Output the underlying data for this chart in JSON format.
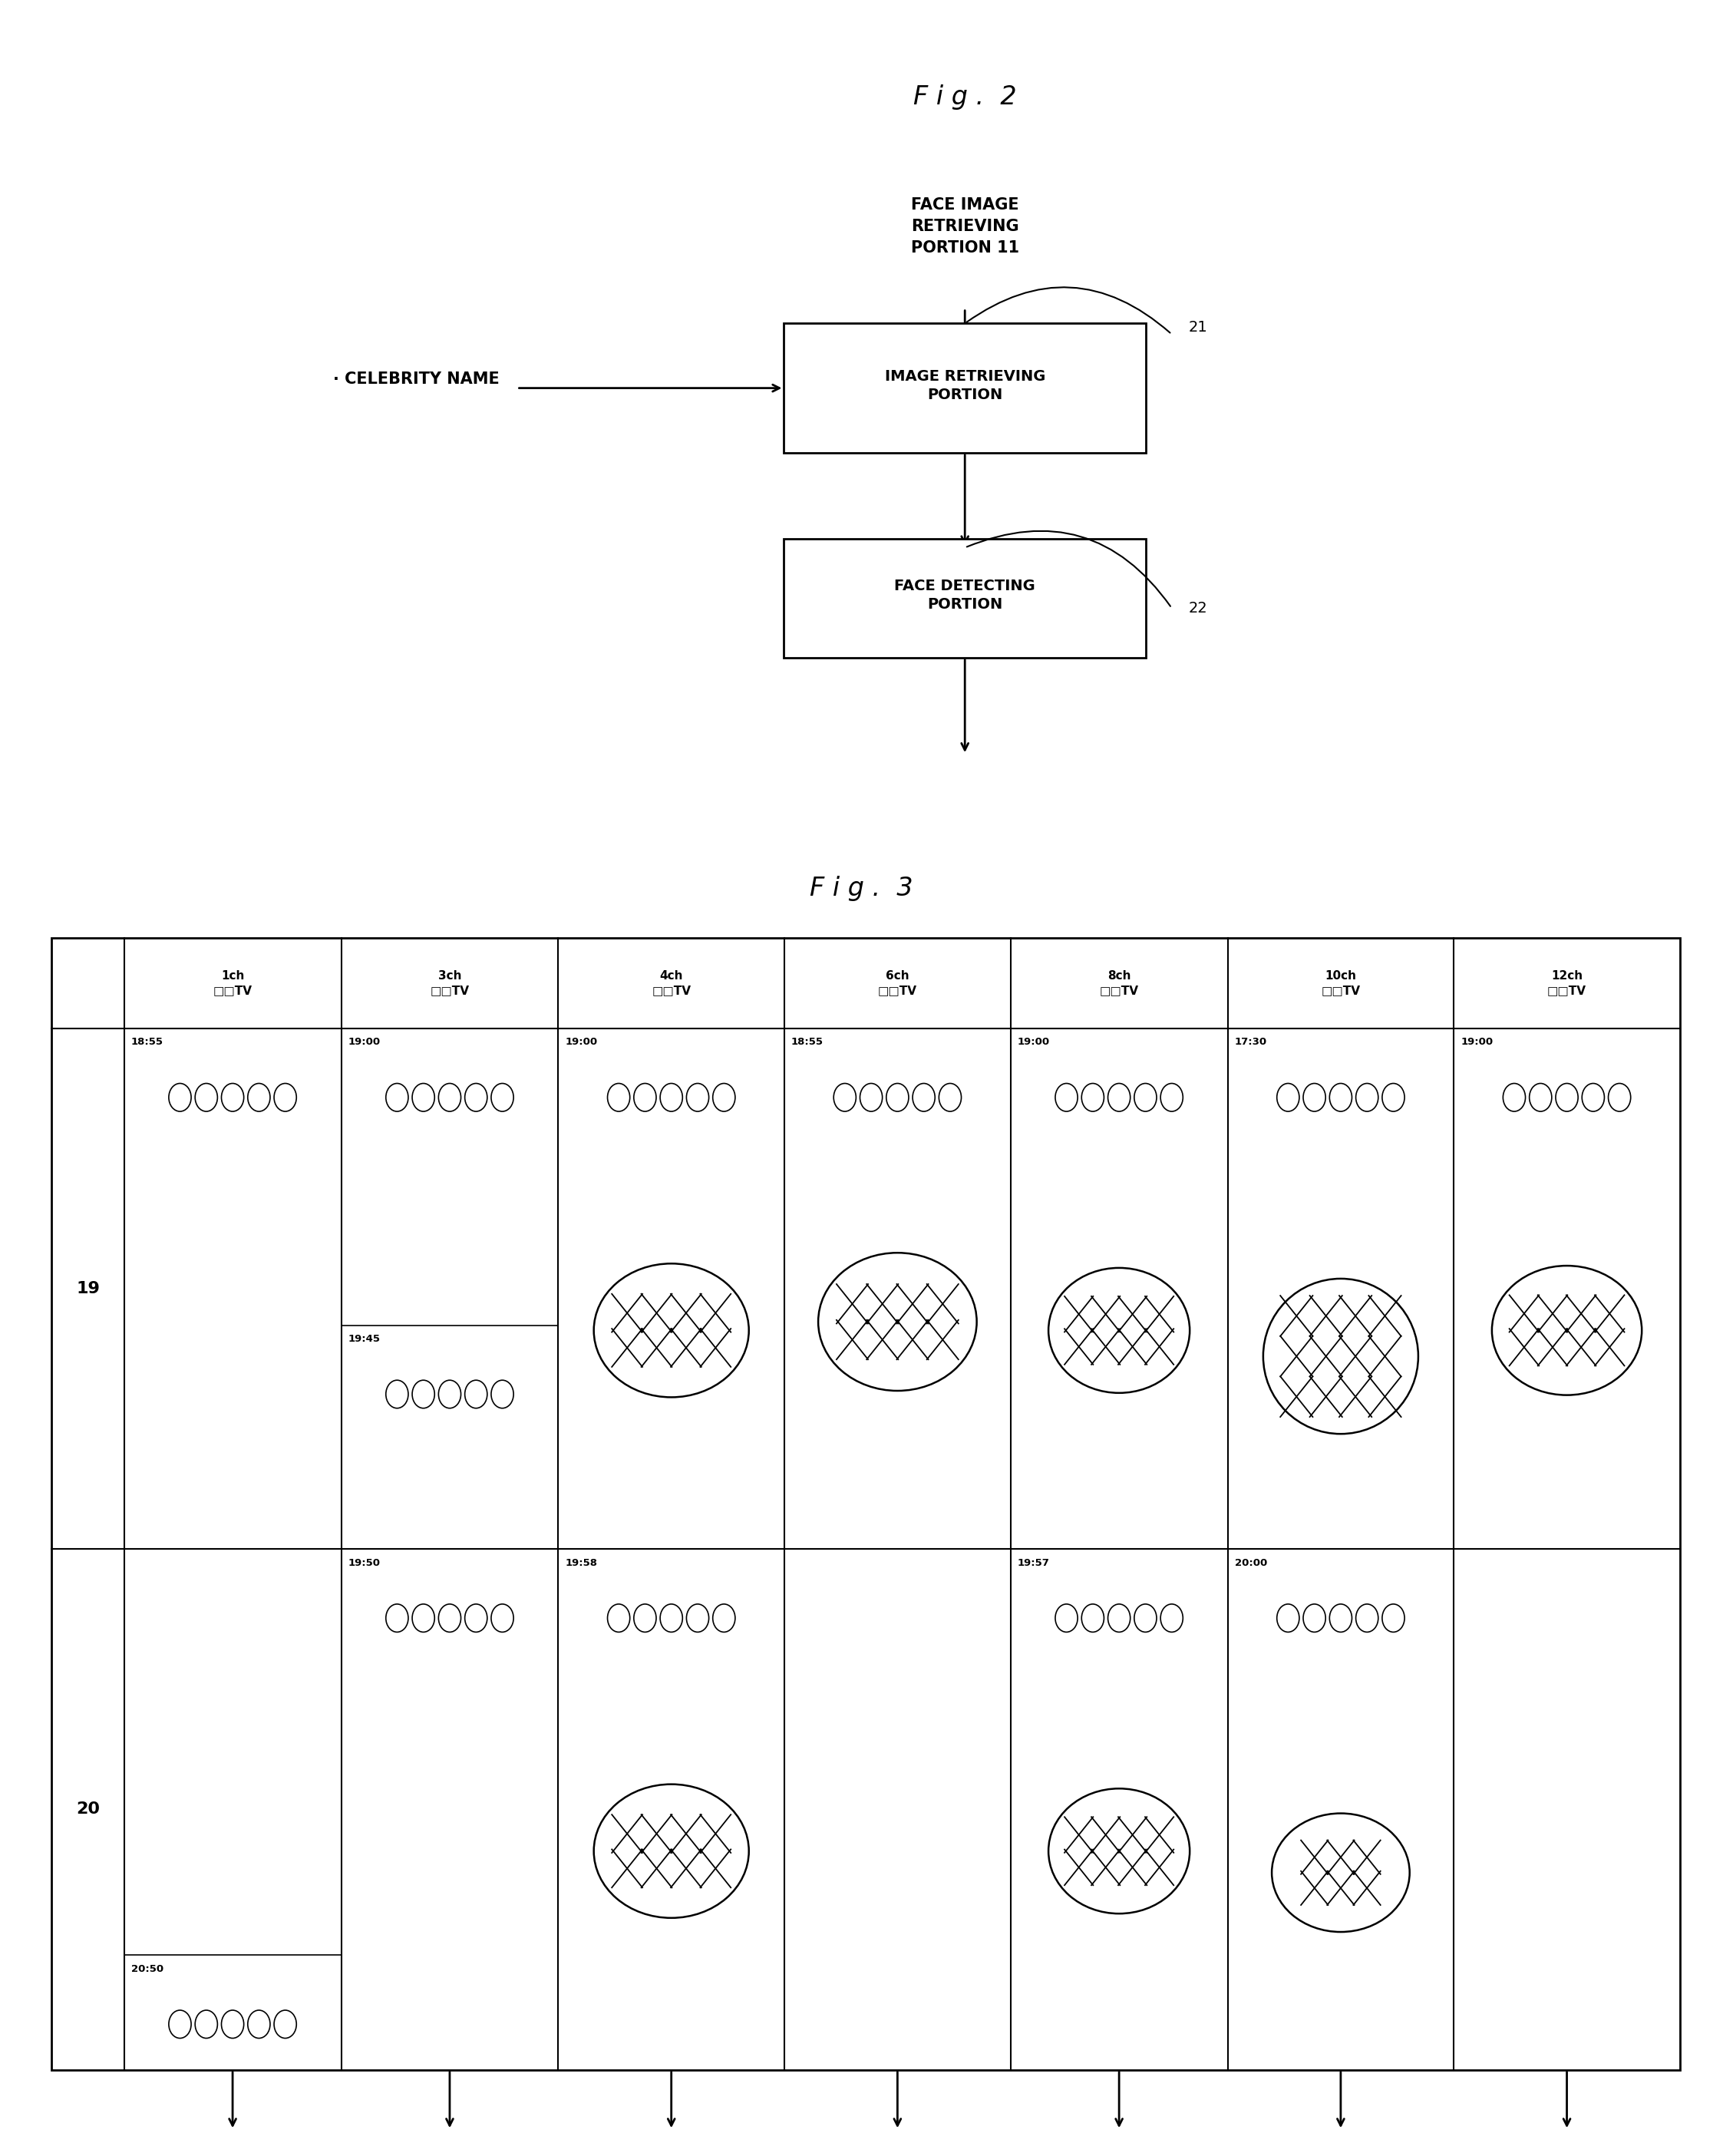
{
  "fig2_title": "F i g .  2",
  "fig3_title": "F i g .  3",
  "face_image_label": "FACE IMAGE\nRETRIEVING\nPORTION 11",
  "box21_label": "IMAGE RETRIEVING\nPORTION",
  "box22_label": "FACE DETECTING\nPORTION",
  "label21": "21",
  "label22": "22",
  "celebrity_label": "· CELEBRITY NAME",
  "ch_labels": [
    "1ch\n□□TV",
    "3ch\n□□TV",
    "4ch\n□□TV",
    "6ch\n□□TV",
    "8ch\n□□TV",
    "10ch\n□□TV",
    "12ch\n□□TV"
  ],
  "bg_color": "#ffffff"
}
